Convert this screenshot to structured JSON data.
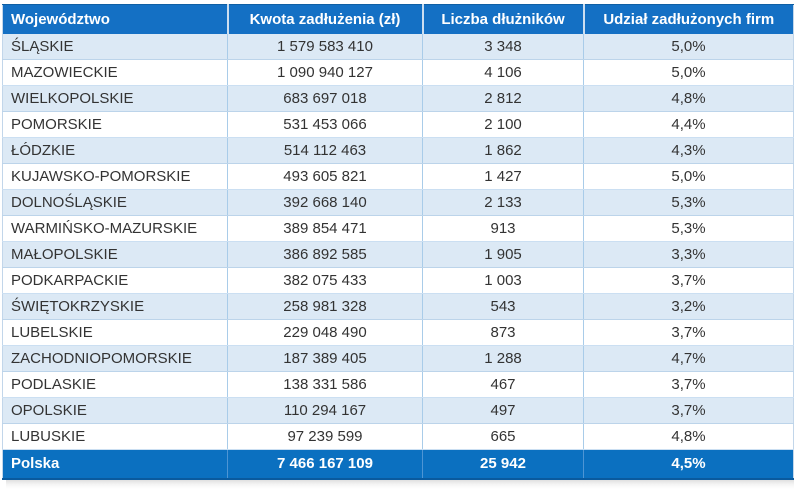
{
  "chart_data": {
    "type": "table",
    "columns": [
      "Województwo",
      "Kwota zadłużenia (zł)",
      "Liczba dłużników",
      "Udział zadłużonych firm"
    ],
    "rows": [
      {
        "voivodeship": "ŚLĄSKIE",
        "debt": "1 579 583 410",
        "debtors": "3 348",
        "share": "5,0%"
      },
      {
        "voivodeship": "MAZOWIECKIE",
        "debt": "1 090 940 127",
        "debtors": "4 106",
        "share": "5,0%"
      },
      {
        "voivodeship": "WIELKOPOLSKIE",
        "debt": "683 697 018",
        "debtors": "2 812",
        "share": "4,8%"
      },
      {
        "voivodeship": "POMORSKIE",
        "debt": "531 453 066",
        "debtors": "2 100",
        "share": "4,4%"
      },
      {
        "voivodeship": "ŁÓDZKIE",
        "debt": "514 112 463",
        "debtors": "1 862",
        "share": "4,3%"
      },
      {
        "voivodeship": "KUJAWSKO-POMORSKIE",
        "debt": "493 605 821",
        "debtors": "1 427",
        "share": "5,0%"
      },
      {
        "voivodeship": "DOLNOŚLĄSKIE",
        "debt": "392 668 140",
        "debtors": "2 133",
        "share": "5,3%"
      },
      {
        "voivodeship": "WARMIŃSKO-MAZURSKIE",
        "debt": "389 854 471",
        "debtors": "913",
        "share": "5,3%"
      },
      {
        "voivodeship": "MAŁOPOLSKIE",
        "debt": "386 892 585",
        "debtors": "1 905",
        "share": "3,3%"
      },
      {
        "voivodeship": "PODKARPACKIE",
        "debt": "382 075 433",
        "debtors": "1 003",
        "share": "3,7%"
      },
      {
        "voivodeship": "ŚWIĘTOKRZYSKIE",
        "debt": "258 981 328",
        "debtors": "543",
        "share": "3,2%"
      },
      {
        "voivodeship": "LUBELSKIE",
        "debt": "229 048 490",
        "debtors": "873",
        "share": "3,7%"
      },
      {
        "voivodeship": "ZACHODNIOPOMORSKIE",
        "debt": "187 389 405",
        "debtors": "1 288",
        "share": "4,7%"
      },
      {
        "voivodeship": "PODLASKIE",
        "debt": "138 331 586",
        "debtors": "467",
        "share": "3,7%"
      },
      {
        "voivodeship": "OPOLSKIE",
        "debt": "110 294 167",
        "debtors": "497",
        "share": "3,7%"
      },
      {
        "voivodeship": "LUBUSKIE",
        "debt": "97 239 599",
        "debtors": "665",
        "share": "4,8%"
      }
    ],
    "footer": {
      "voivodeship": "Polska",
      "debt": "7 466 167 109",
      "debtors": "25 942",
      "share": "4,5%"
    },
    "layout": {
      "striped": true,
      "stripe_start": "first-row"
    }
  },
  "colors": {
    "header_bg": "#1470C4",
    "total_bg": "#0B70C0",
    "stripe_bg": "#DCE9F5",
    "grid_border": "#A9CCE9",
    "body_text": "#333333",
    "header_text": "#FFFFFF"
  }
}
